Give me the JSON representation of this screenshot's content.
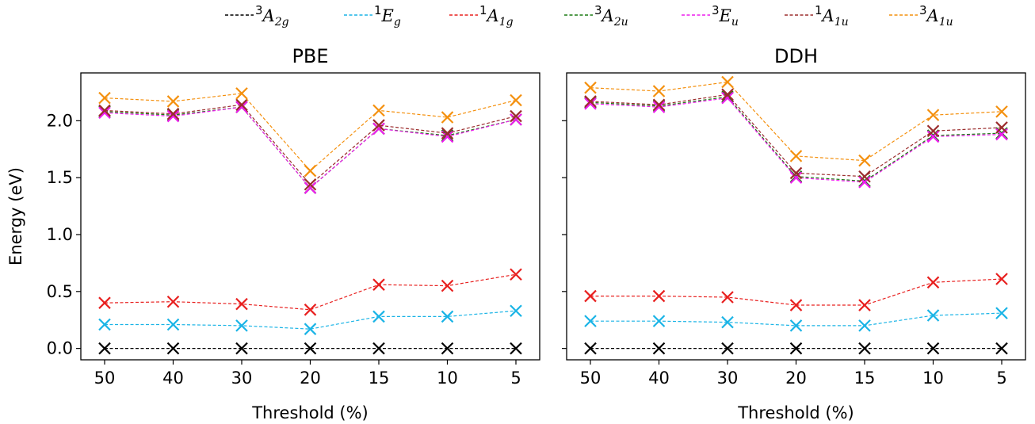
{
  "chart_data": {
    "type": "line",
    "categories": [
      "50",
      "40",
      "30",
      "20",
      "15",
      "10",
      "5"
    ],
    "ylabel": "Energy (eV)",
    "xlabel": "Threshold (%)",
    "ylim": [
      -0.1,
      2.42
    ],
    "yticks": [
      "0.0",
      "0.5",
      "1.0",
      "1.5",
      "2.0"
    ],
    "legend_position": "top-center",
    "legend": [
      {
        "sup": "3",
        "base": "A",
        "sub": "2g",
        "color": "#000000"
      },
      {
        "sup": "1",
        "base": "E",
        "sub": "g",
        "color": "#1ab4e6"
      },
      {
        "sup": "1",
        "base": "A",
        "sub": "1g",
        "color": "#e8201f"
      },
      {
        "sup": "3",
        "base": "A",
        "sub": "2u",
        "color": "#1a7a12"
      },
      {
        "sup": "3",
        "base": "E",
        "sub": "u",
        "color": "#ee1cee"
      },
      {
        "sup": "1",
        "base": "A",
        "sub": "1u",
        "color": "#9b2d2d"
      },
      {
        "sup": "3",
        "base": "A",
        "sub": "1u",
        "color": "#f4900e"
      }
    ],
    "panels": [
      {
        "title": "PBE",
        "series": [
          {
            "color": "#000000",
            "values": [
              0.0,
              0.0,
              0.0,
              0.0,
              0.0,
              0.0,
              0.0
            ]
          },
          {
            "color": "#1ab4e6",
            "values": [
              0.21,
              0.21,
              0.2,
              0.17,
              0.28,
              0.28,
              0.33
            ]
          },
          {
            "color": "#e8201f",
            "values": [
              0.4,
              0.41,
              0.39,
              0.34,
              0.56,
              0.55,
              0.65
            ]
          },
          {
            "color": "#1a7a12",
            "values": [
              2.08,
              2.05,
              2.12,
              1.41,
              1.93,
              1.87,
              2.01
            ]
          },
          {
            "color": "#ee1cee",
            "values": [
              2.07,
              2.04,
              2.12,
              1.41,
              1.93,
              1.86,
              2.01
            ]
          },
          {
            "color": "#9b2d2d",
            "values": [
              2.09,
              2.06,
              2.14,
              1.44,
              1.96,
              1.89,
              2.04
            ]
          },
          {
            "color": "#f4900e",
            "values": [
              2.2,
              2.17,
              2.24,
              1.56,
              2.09,
              2.03,
              2.18
            ]
          }
        ]
      },
      {
        "title": "DDH",
        "series": [
          {
            "color": "#000000",
            "values": [
              0.0,
              0.0,
              0.0,
              0.0,
              0.0,
              0.0,
              0.0
            ]
          },
          {
            "color": "#1ab4e6",
            "values": [
              0.24,
              0.24,
              0.23,
              0.2,
              0.2,
              0.29,
              0.31
            ]
          },
          {
            "color": "#e8201f",
            "values": [
              0.46,
              0.46,
              0.45,
              0.38,
              0.38,
              0.58,
              0.61
            ]
          },
          {
            "color": "#1a7a12",
            "values": [
              2.16,
              2.13,
              2.21,
              1.51,
              1.47,
              1.87,
              1.89
            ]
          },
          {
            "color": "#ee1cee",
            "values": [
              2.15,
              2.12,
              2.2,
              1.5,
              1.46,
              1.86,
              1.88
            ]
          },
          {
            "color": "#9b2d2d",
            "values": [
              2.17,
              2.14,
              2.23,
              1.54,
              1.51,
              1.91,
              1.94
            ]
          },
          {
            "color": "#f4900e",
            "values": [
              2.29,
              2.26,
              2.34,
              1.69,
              1.65,
              2.05,
              2.08
            ]
          }
        ]
      }
    ]
  }
}
